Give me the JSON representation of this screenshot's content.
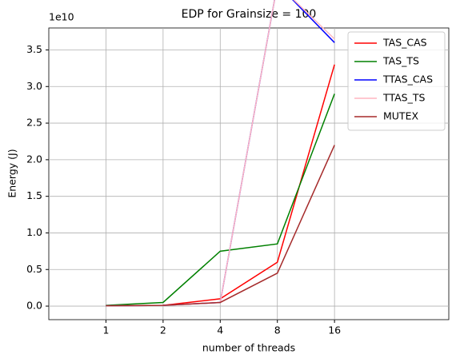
{
  "chart_data": {
    "type": "line",
    "title": "EDP for Grainsize = 100",
    "x_label": "number of threads",
    "y_label": "Energy (J)",
    "y_offset_label": "1e10",
    "categories": [
      "1",
      "2",
      "4",
      "8",
      "16"
    ],
    "series": [
      {
        "name": "TAS_CAS",
        "color": "#ff0000",
        "values": [
          0.005,
          0.01,
          0.1,
          0.6,
          3.3
        ]
      },
      {
        "name": "TAS_TS",
        "color": "#008000",
        "values": [
          0.01,
          0.05,
          0.75,
          0.85,
          2.9
        ]
      },
      {
        "name": "TTAS_CAS",
        "color": "#0000ff",
        "values": [
          0.005,
          0.01,
          0.05,
          4.4,
          3.6
        ]
      },
      {
        "name": "TTAS_TS",
        "color": "#ffb6c1",
        "values": [
          0.005,
          0.01,
          0.05,
          4.4,
          3.65
        ]
      },
      {
        "name": "MUTEX",
        "color": "#a52a2a",
        "values": [
          0.005,
          0.01,
          0.05,
          0.45,
          2.2
        ]
      }
    ],
    "ylim": [
      -0.185,
      3.8
    ],
    "yticks": [
      {
        "value": 0,
        "label": "0.0"
      },
      0.5,
      {
        "value": 1,
        "label": "1.0"
      },
      1.5,
      {
        "value": 2,
        "label": "2.0"
      },
      2.5,
      {
        "value": 3,
        "label": "3.0"
      },
      3.5
    ],
    "grid": true,
    "legend": "upper right"
  }
}
